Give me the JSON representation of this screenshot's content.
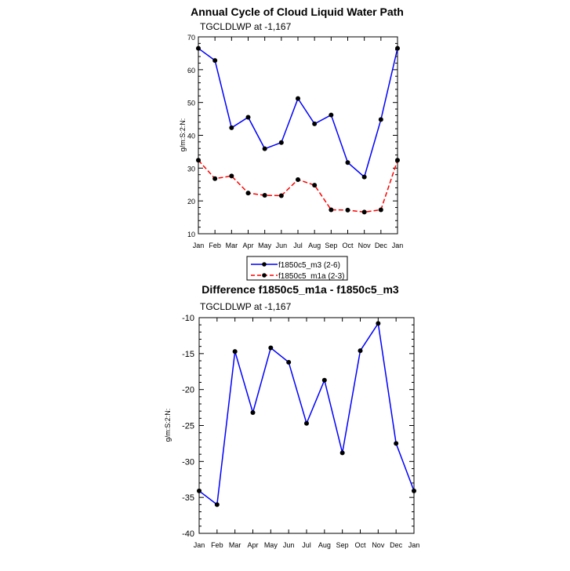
{
  "chart_data": [
    {
      "type": "line",
      "title": "Annual Cycle of Cloud Liquid Water Path",
      "subtitle": "TGCLDLWP at -1,167",
      "xlabel": "",
      "ylabel": "g/m:S:2:N:",
      "categories": [
        "Jan",
        "Feb",
        "Mar",
        "Apr",
        "May",
        "Jun",
        "Jul",
        "Aug",
        "Sep",
        "Oct",
        "Nov",
        "Dec",
        "Jan"
      ],
      "ylim": [
        10,
        70
      ],
      "yticks": [
        10,
        20,
        30,
        40,
        50,
        60,
        70
      ],
      "series": [
        {
          "name": "f1850c5_m3 (2-6)",
          "color": "#0000ff",
          "dash": "solid",
          "values": [
            66.5,
            62.8,
            42.3,
            45.5,
            35.9,
            37.8,
            51.2,
            43.5,
            46.2,
            31.7,
            27.3,
            44.8,
            66.5
          ]
        },
        {
          "name": "f1850c5_m1a (2-3)",
          "color": "#ff0000",
          "dash": "dashed",
          "values": [
            32.4,
            26.8,
            27.6,
            22.4,
            21.7,
            21.6,
            26.5,
            24.8,
            17.3,
            17.2,
            16.6,
            17.3,
            32.4
          ]
        }
      ],
      "legend": "below"
    },
    {
      "type": "line",
      "title": "Difference f1850c5_m1a - f1850c5_m3",
      "subtitle": "TGCLDLWP at -1,167",
      "xlabel": "",
      "ylabel": "g/m:S:2:N:",
      "categories": [
        "Jan",
        "Feb",
        "Mar",
        "Apr",
        "May",
        "Jun",
        "Jul",
        "Aug",
        "Sep",
        "Oct",
        "Nov",
        "Dec",
        "Jan"
      ],
      "ylim": [
        -40,
        -10
      ],
      "yticks": [
        -40,
        -35,
        -30,
        -25,
        -20,
        -15,
        -10
      ],
      "series": [
        {
          "color": "#0000ff",
          "dash": "solid",
          "values": [
            -34.1,
            -36.0,
            -14.7,
            -23.2,
            -14.2,
            -16.2,
            -24.7,
            -18.7,
            -28.8,
            -14.6,
            -10.8,
            -27.5,
            -34.1
          ]
        }
      ]
    }
  ]
}
